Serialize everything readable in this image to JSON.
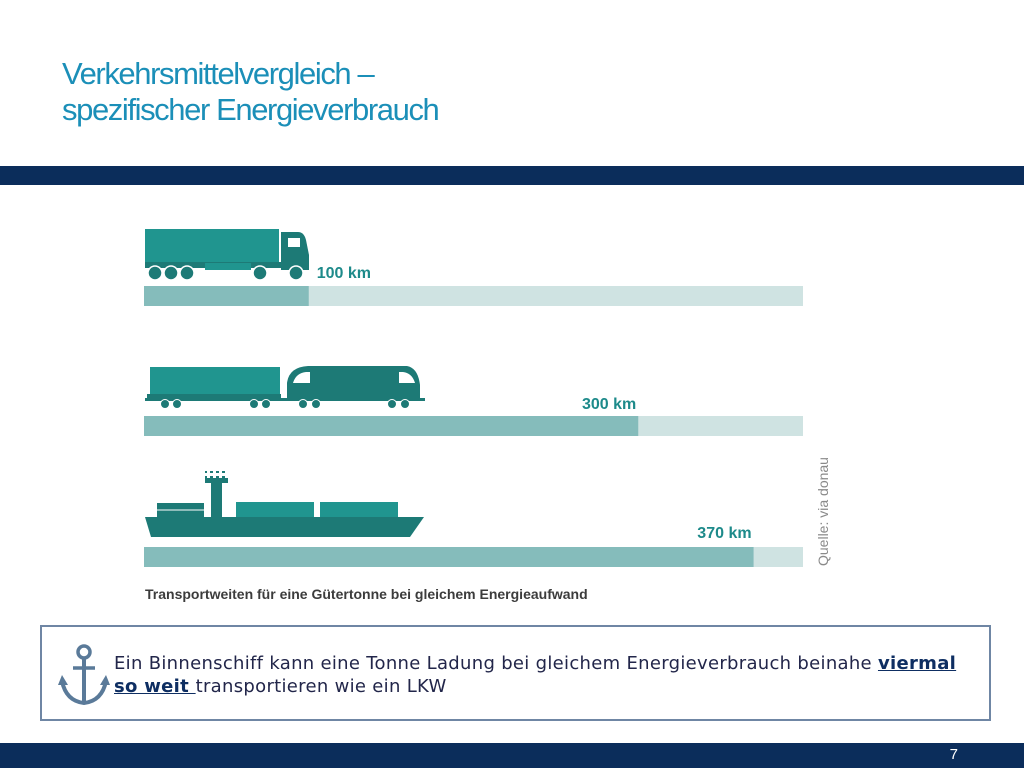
{
  "slide": {
    "title_line1": "Verkehrsmittelvergleich –",
    "title_line2": "spezifischer Energieverbrauch",
    "page_number": "7"
  },
  "chart_data": {
    "type": "bar",
    "orientation": "horizontal",
    "categories": [
      "LKW",
      "Bahn",
      "Binnenschiff"
    ],
    "values": [
      100,
      300,
      370
    ],
    "value_labels": [
      "100 km",
      "300 km",
      "370 km"
    ],
    "unit": "km",
    "xlim": [
      0,
      400
    ],
    "caption": "Transportweiten für eine Gütertonne bei gleichem Energieaufwand",
    "source": "Quelle: via donau",
    "grid": false,
    "legend": "none",
    "colors": {
      "bar": "#85bcbb",
      "track": "#cfe3e2",
      "label": "#1d8a8a",
      "vehicle_dark": "#1d7a76",
      "vehicle_light": "#20958f"
    }
  },
  "note": {
    "icon": "anchor-icon",
    "text_before": "Ein Binnenschiff kann eine Tonne Ladung bei gleichem Energieverbrauch beinahe ",
    "highlight": "viermal so weit ",
    "text_after": "transportieren wie ein LKW",
    "colors": {
      "icon": "#5a7a99",
      "text": "#22264a",
      "highlight": "#0e2e62"
    }
  }
}
